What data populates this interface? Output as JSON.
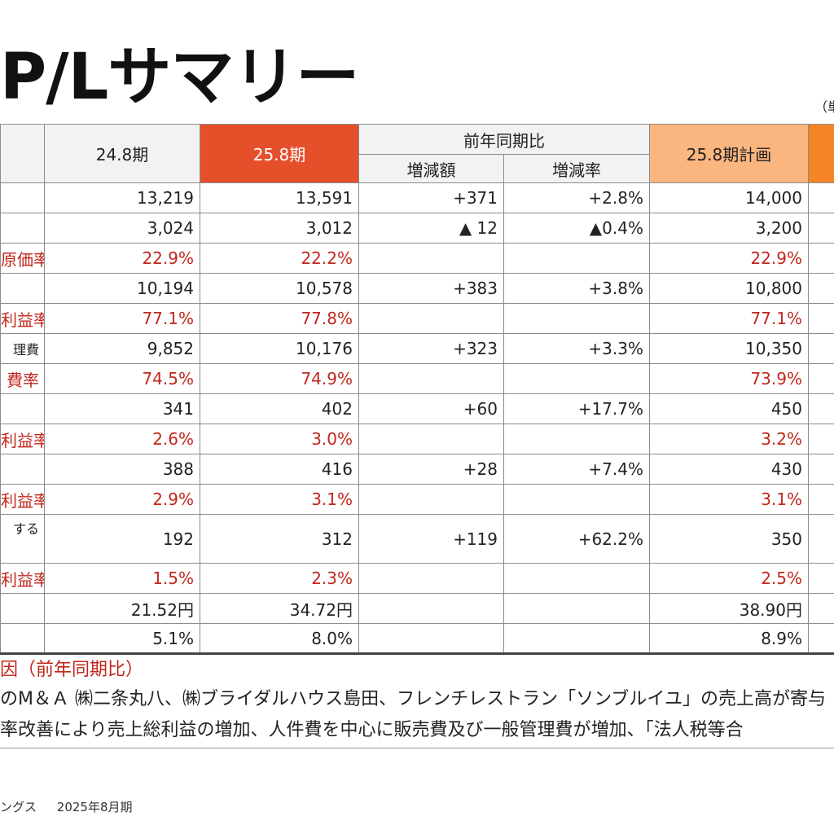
{
  "title": "P/Lサマリー",
  "unit_label": "（単",
  "table": {
    "headers": {
      "prev": "24.8期",
      "curr": "25.8期",
      "yoy": "前年同期比",
      "diff": "増減額",
      "rate": "増減率",
      "plan": "25.8期計画"
    },
    "rows": [
      {
        "label": "",
        "prev": "13,219",
        "curr": "13,591",
        "diff": "+371",
        "rate": "+2.8%",
        "plan": "14,000"
      },
      {
        "label": "",
        "prev": "3,024",
        "curr": "3,012",
        "diff": "▲ 12",
        "rate": "▲0.4%",
        "plan": "3,200"
      },
      {
        "label": "原価率",
        "prev": "22.9%",
        "curr": "22.2%",
        "diff": "",
        "rate": "",
        "plan": "22.9%"
      },
      {
        "label": "",
        "prev": "10,194",
        "curr": "10,578",
        "diff": "+383",
        "rate": "+3.8%",
        "plan": "10,800"
      },
      {
        "label": "利益率",
        "prev": "77.1%",
        "curr": "77.8%",
        "diff": "",
        "rate": "",
        "plan": "77.1%"
      },
      {
        "label": "理費",
        "prev": "9,852",
        "curr": "10,176",
        "diff": "+323",
        "rate": "+3.3%",
        "plan": "10,350"
      },
      {
        "label": "費率",
        "prev": "74.5%",
        "curr": "74.9%",
        "diff": "",
        "rate": "",
        "plan": "73.9%"
      },
      {
        "label": "",
        "prev": "341",
        "curr": "402",
        "diff": "+60",
        "rate": "+17.7%",
        "plan": "450"
      },
      {
        "label": "利益率",
        "prev": "2.6%",
        "curr": "3.0%",
        "diff": "",
        "rate": "",
        "plan": "3.2%"
      },
      {
        "label": "",
        "prev": "388",
        "curr": "416",
        "diff": "+28",
        "rate": "+7.4%",
        "plan": "430"
      },
      {
        "label": "利益率",
        "prev": "2.9%",
        "curr": "3.1%",
        "diff": "",
        "rate": "",
        "plan": "3.1%"
      },
      {
        "label": "する",
        "prev": "192",
        "curr": "312",
        "diff": "+119",
        "rate": "+62.2%",
        "plan": "350"
      },
      {
        "label": "利益率",
        "prev": "1.5%",
        "curr": "2.3%",
        "diff": "",
        "rate": "",
        "plan": "2.5%"
      },
      {
        "label": "",
        "prev": "21.52円",
        "curr": "34.72円",
        "diff": "",
        "rate": "",
        "plan": "38.90円"
      },
      {
        "label": "",
        "prev": "5.1%",
        "curr": "8.0%",
        "diff": "",
        "rate": "",
        "plan": "8.9%"
      }
    ]
  },
  "notes": {
    "heading": "因（前年同期比）",
    "line1": "のM＆Ａ ㈱二条丸八、㈱ブライダルハウス島田、フレンチレストラン「ソンブルイユ」の売上高が寄与",
    "line2": "率改善により売上総利益の増加、人件費を中心に販売費及び一般管理費が増加、「法人税等合"
  },
  "footer": {
    "company": "ングス",
    "period": "2025年8月期"
  }
}
